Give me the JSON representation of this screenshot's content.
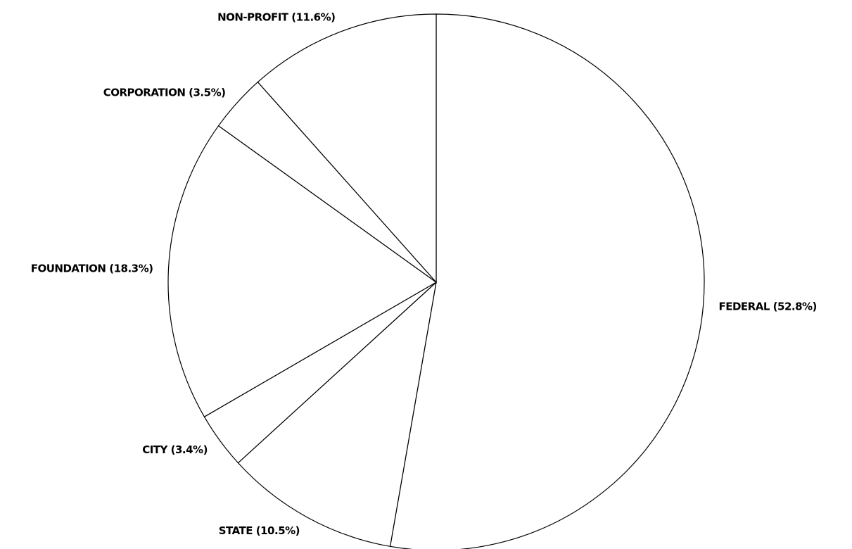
{
  "chart_data": {
    "type": "pie",
    "categories": [
      "FEDERAL",
      "STATE",
      "CITY",
      "FOUNDATION",
      "CORPORATION",
      "NON-PROFIT"
    ],
    "values": [
      52.8,
      10.5,
      3.4,
      18.3,
      3.5,
      11.6
    ],
    "value_labels": [
      "(52.8%)",
      "(10.5%)",
      "(3.4%)",
      "(18.3%)",
      "(3.5%)",
      "(11.6%)"
    ],
    "color": "#ffffff"
  }
}
